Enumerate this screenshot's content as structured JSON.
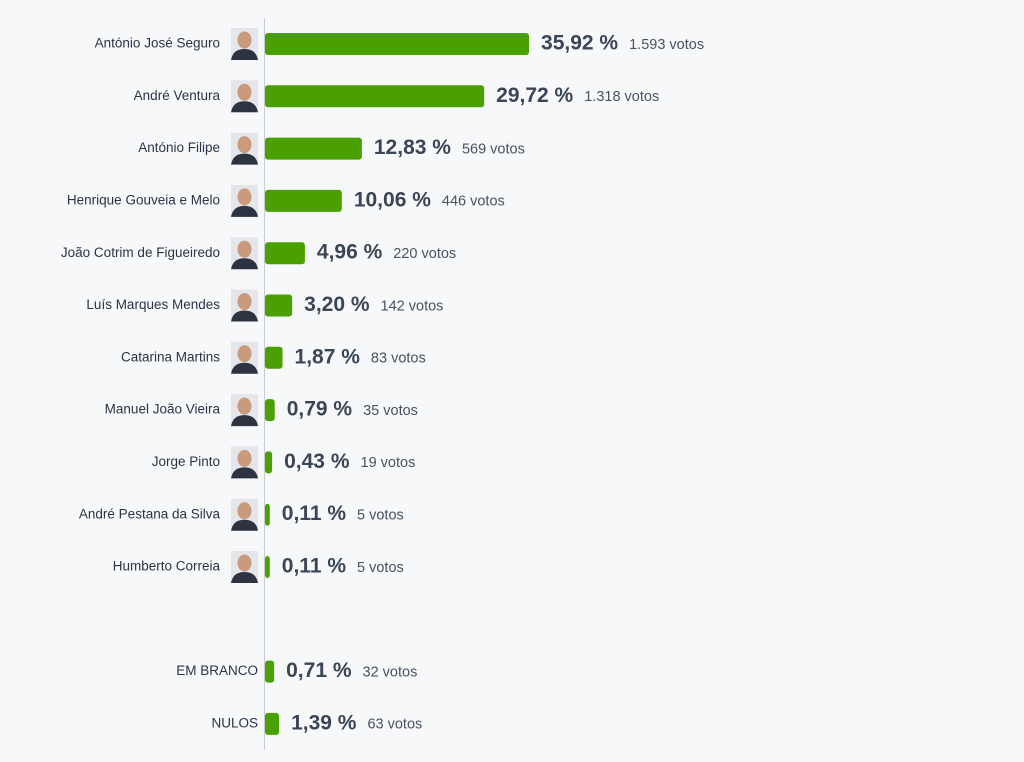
{
  "chart_data": {
    "type": "bar",
    "categories": [
      "António José Seguro",
      "André Ventura",
      "António Filipe",
      "Henrique Gouveia e Melo",
      "João Cotrim de Figueiredo",
      "Luís Marques Mendes",
      "Catarina Martins",
      "Manuel João Vieira",
      "Jorge Pinto",
      "André Pestana da Silva",
      "Humberto Correia",
      null,
      "EM BRANCO",
      "NULOS"
    ],
    "values": [
      35.92,
      29.72,
      12.83,
      10.06,
      4.96,
      3.2,
      1.87,
      0.79,
      0.43,
      0.11,
      0.11,
      null,
      0.71,
      1.39
    ],
    "value_labels": [
      "35,92 %",
      "29,72 %",
      "12,83 %",
      "10,06 %",
      "4,96 %",
      "3,20 %",
      "1,87 %",
      "0,79 %",
      "0,43 %",
      "0,11 %",
      "0,11 %",
      null,
      "0,71 %",
      "1,39 %"
    ],
    "votes": {
      "values": [
        1593,
        1318,
        569,
        446,
        220,
        142,
        83,
        35,
        19,
        5,
        5,
        null,
        32,
        63
      ],
      "value_labels": [
        "1.593 votos",
        "1.318 votos",
        "569 votos",
        "446 votos",
        "220 votos",
        "142 votos",
        "83 votos",
        "35 votos",
        "19 votos",
        "5 votos",
        "5 votos",
        null,
        "32 votos",
        "63 votos"
      ]
    },
    "color": "#4aa000"
  }
}
